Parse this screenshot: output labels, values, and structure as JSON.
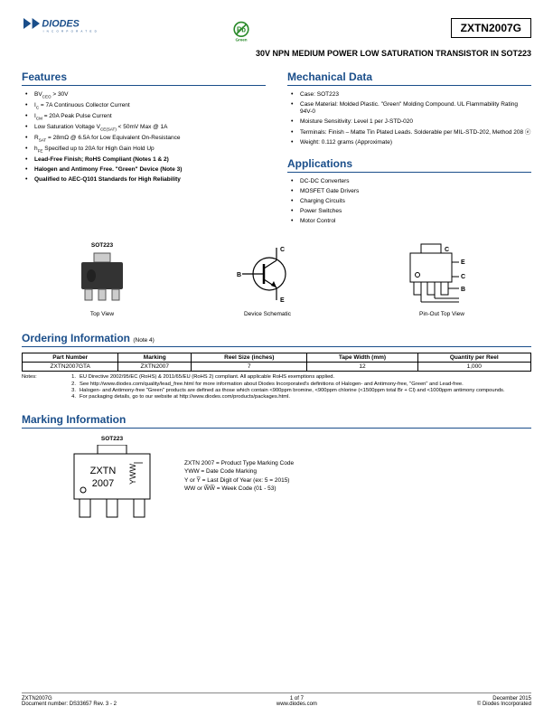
{
  "header": {
    "part_number": "ZXTN2007G",
    "subtitle": "30V NPN MEDIUM POWER LOW SATURATION TRANSISTOR IN SOT223"
  },
  "features": {
    "title": "Features",
    "items": [
      "BV<sub>CEO</sub> > 30V",
      "I<sub>C</sub> = 7A Continuous Collector Current",
      "I<sub>CM</sub> = 20A Peak Pulse Current",
      "Low Saturation Voltage V<sub>CE(SAT)</sub> < 50mV Max @ 1A",
      "R<sub>SAT</sub> = 28mΩ @ 6.5A for Low Equivalent On-Resistance",
      "h<sub>FE</sub> Specified up to 20A for High Gain Hold Up",
      "<b>Lead-Free Finish; RoHS Compliant (Notes 1 & 2)</b>",
      "<b>Halogen and Antimony Free. \"Green\" Device (Note 3)</b>",
      "<b>Qualified to AEC-Q101 Standards for High Reliability</b>"
    ]
  },
  "mechanical": {
    "title": "Mechanical Data",
    "items": [
      "Case: SOT223",
      "Case Material: Molded Plastic. \"Green\" Molding Compound. UL Flammability Rating 94V-0",
      "Moisture Sensitivity: Level 1 per J-STD-020",
      "Terminals: Finish – Matte Tin Plated Leads. Solderable per MIL-STD-202, Method 208 ⓔ",
      "Weight: 0.112 grams (Approximate)"
    ]
  },
  "applications": {
    "title": "Applications",
    "items": [
      "DC-DC Converters",
      "MOSFET Gate Drivers",
      "Charging Circuits",
      "Power Switches",
      "Motor Control"
    ]
  },
  "diagrams": {
    "sot223_label": "SOT223",
    "top_view": "Top View",
    "device_schematic": "Device Schematic",
    "pinout": "Pin-Out Top View",
    "pins": {
      "b": "B",
      "c": "C",
      "e": "E"
    }
  },
  "ordering": {
    "title": "Ordering Information",
    "note_ref": "(Note 4)",
    "columns": [
      "Part Number",
      "Marking",
      "Reel Size (inches)",
      "Tape Width (mm)",
      "Quantity per Reel"
    ],
    "row": [
      "ZXTN2007GTA",
      "ZXTN2007",
      "7",
      "12",
      "1,000"
    ],
    "notes_label": "Notes:",
    "notes": [
      "EU Directive 2002/95/EC (RoHS) & 2011/65/EU (RoHS 2) compliant. All applicable RoHS exemptions applied.",
      "See http://www.diodes.com/quality/lead_free.html for more information about Diodes Incorporated's definitions of Halogen- and Antimony-free, \"Green\" and Lead-free.",
      "Halogen- and Antimony-free \"Green\" products are defined as those which contain <900ppm bromine, <900ppm chlorine (<1500ppm total Br + Cl) and <1000ppm antimony compounds.",
      "For packaging details, go to our website at http://www.diodes.com/products/packages.html."
    ]
  },
  "marking": {
    "title": "Marking Information",
    "pkg_label": "SOT223",
    "chip_line1": "ZXTN",
    "chip_line2": "2007",
    "side_text": "YWW",
    "desc": [
      "ZXTN 2007 = Product Type Marking Code",
      "YWW = Date Code Marking",
      "Y or Y̅ = Last Digit of Year (ex: 5 = 2015)",
      "WW or W̅W̅ = Week Code (01 - 53)"
    ]
  },
  "footer": {
    "left1": "ZXTN2007G",
    "left2": "Document number: DS33657 Rev. 3 - 2",
    "center": "1 of 7",
    "center2": "www.diodes.com",
    "right1": "December 2015",
    "right2": "© Diodes Incorporated"
  }
}
